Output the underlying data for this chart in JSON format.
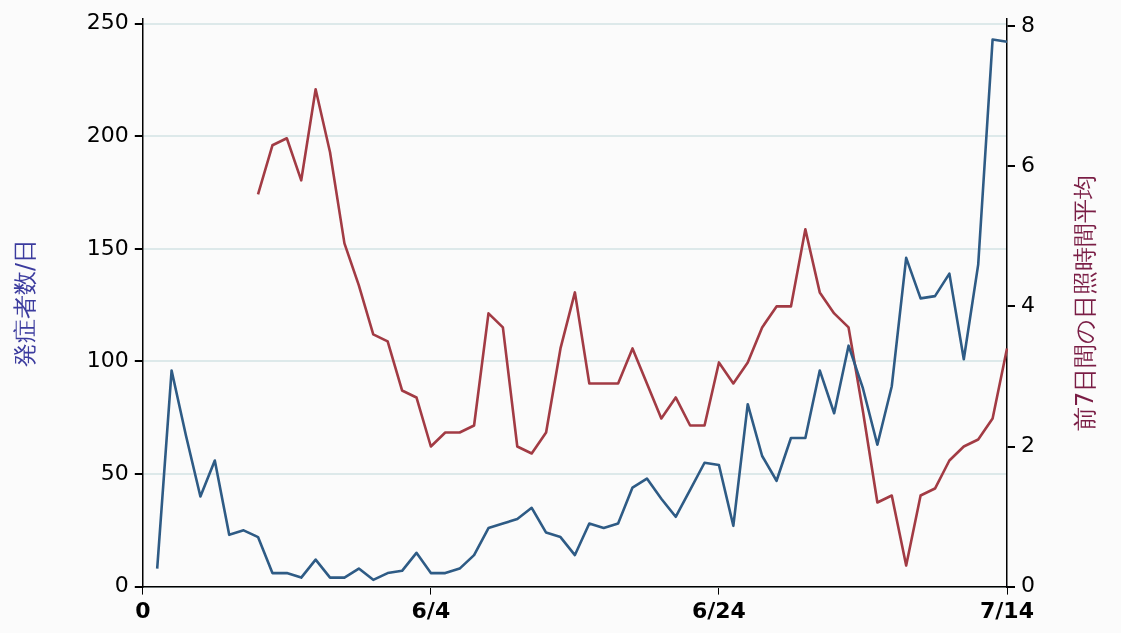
{
  "chart_data": {
    "type": "line",
    "ylabel": "発症者数/日",
    "y2label": "前7日間の日照時間平均",
    "categories": [
      "0",
      null,
      null,
      null,
      null,
      null,
      null,
      null,
      null,
      null,
      null,
      null,
      null,
      null,
      null,
      null,
      null,
      null,
      null,
      null,
      "6/4",
      null,
      null,
      null,
      null,
      null,
      null,
      null,
      null,
      null,
      null,
      null,
      null,
      null,
      null,
      null,
      null,
      null,
      null,
      null,
      "6/24",
      null,
      null,
      null,
      null,
      null,
      null,
      null,
      null,
      null,
      null,
      null,
      null,
      null,
      null,
      null,
      null,
      null,
      null,
      null,
      "7/14"
    ],
    "ylim": [
      0,
      252
    ],
    "yticks": [
      0,
      50,
      100,
      150,
      200,
      250
    ],
    "y2lim": [
      0,
      8.1
    ],
    "y2ticks": [
      0,
      2,
      4,
      6,
      8
    ],
    "grid": "y",
    "series": [
      {
        "color": "#2e5b85",
        "values": [
          null,
          8,
          96,
          67,
          40,
          56,
          23,
          25,
          22,
          6,
          6,
          4,
          12,
          4,
          4,
          8,
          3,
          6,
          7,
          15,
          6,
          6,
          8,
          14,
          26,
          28,
          30,
          35,
          24,
          22,
          14,
          28,
          26,
          28,
          44,
          48,
          39,
          31,
          43,
          55,
          54,
          27,
          81,
          58,
          47,
          66,
          66,
          96,
          77,
          107,
          88,
          63,
          89,
          146,
          128,
          129,
          139,
          101,
          143,
          243,
          242
        ]
      },
      {
        "color": "#a23b44",
        "axis": "y2",
        "values": [
          null,
          null,
          null,
          null,
          null,
          null,
          null,
          null,
          5.6,
          6.3,
          6.4,
          5.8,
          7.1,
          6.2,
          4.9,
          4.3,
          3.6,
          3.5,
          2.8,
          2.7,
          2.0,
          2.2,
          2.2,
          2.3,
          3.9,
          3.7,
          2.0,
          1.9,
          2.2,
          3.4,
          4.2,
          2.9,
          2.9,
          2.9,
          3.4,
          2.9,
          2.4,
          2.7,
          2.3,
          2.3,
          3.2,
          2.9,
          3.2,
          3.7,
          4.0,
          4.0,
          5.1,
          4.2,
          3.9,
          3.7,
          2.5,
          1.2,
          1.3,
          0.3,
          1.3,
          1.4,
          1.8,
          2.0,
          2.1,
          2.4,
          3.4
        ]
      }
    ]
  }
}
